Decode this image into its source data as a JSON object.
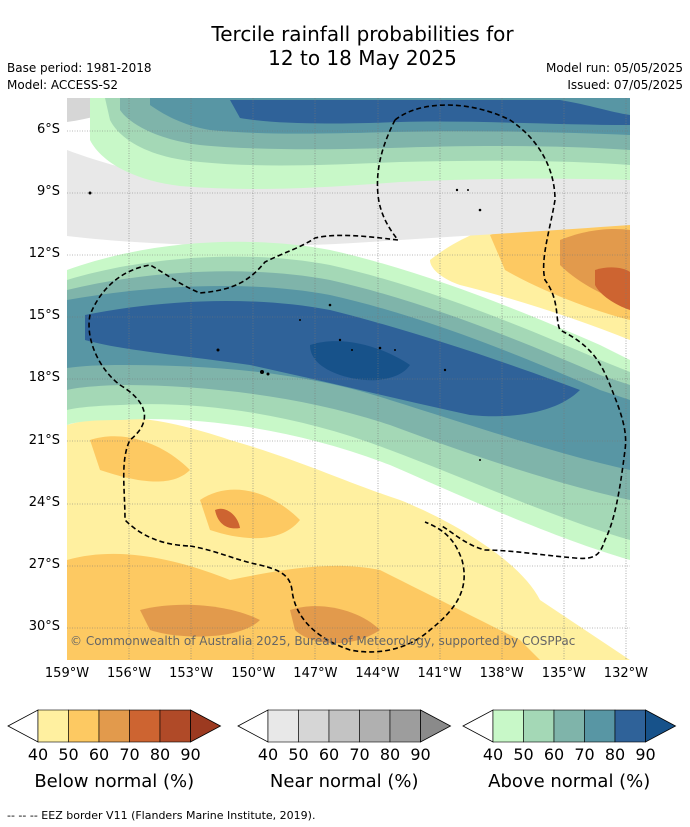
{
  "title_line1": "Tercile rainfall probabilities for",
  "title_line2": "12 to 18 May 2025",
  "base_period": "Base period: 1981-2018",
  "model": "Model: ACCESS-S2",
  "model_run": "Model run: 05/05/2025",
  "issued": "Issued: 07/05/2025",
  "copyright": "© Commonwealth of Australia 2025, Bureau of Meteorology, supported by COSPPac",
  "footer": "--  --  -- EEZ border V11 (Flanders Marine Institute, 2019).",
  "lat_labels": [
    "6°S",
    "9°S",
    "12°S",
    "15°S",
    "18°S",
    "21°S",
    "24°S",
    "27°S",
    "30°S"
  ],
  "lon_labels": [
    "159°W",
    "156°W",
    "153°W",
    "150°W",
    "147°W",
    "144°W",
    "141°W",
    "138°W",
    "135°W",
    "132°W"
  ],
  "legends": [
    {
      "title": "Below normal (%)",
      "colors": [
        "#fff0a0",
        "#fdc962",
        "#e29a4c",
        "#cd6431",
        "#b04a28",
        "#9c3a20"
      ],
      "ticks": [
        "40",
        "50",
        "60",
        "70",
        "80",
        "90"
      ]
    },
    {
      "title": "Near normal (%)",
      "colors": [
        "#e8e8e8",
        "#d6d6d6",
        "#c3c3c3",
        "#b0b0b0",
        "#9d9d9d",
        "#8a8a8a"
      ],
      "ticks": [
        "40",
        "50",
        "60",
        "70",
        "80",
        "90"
      ]
    },
    {
      "title": "Above normal (%)",
      "colors": [
        "#c8f8c8",
        "#a4d8b6",
        "#7fb4aa",
        "#5896a4",
        "#2f6299",
        "#17528a"
      ],
      "ticks": [
        "40",
        "50",
        "60",
        "70",
        "80",
        "90"
      ]
    }
  ]
}
